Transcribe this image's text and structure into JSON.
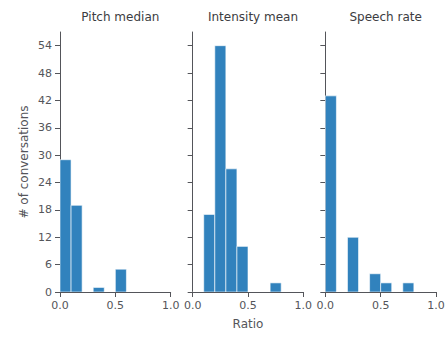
{
  "chart_data": [
    {
      "type": "histogram",
      "title": "Pitch median",
      "ylabel": "# of conversations",
      "bins": [
        0.0,
        0.1,
        0.2,
        0.3,
        0.4,
        0.5,
        0.6,
        0.7,
        0.8,
        0.9,
        1.0
      ],
      "values": [
        29,
        19,
        0,
        1,
        0,
        5,
        0,
        0,
        0,
        0
      ],
      "color": "#3182bd",
      "xlim": [
        0,
        1
      ],
      "ylim": [
        0,
        57
      ],
      "xticks": [
        {
          "value": 0,
          "label": "0.0"
        },
        0.5,
        {
          "value": 1,
          "label": "1.0"
        }
      ],
      "yticks": [
        0,
        6,
        12,
        18,
        24,
        30,
        36,
        42,
        48,
        54
      ],
      "grid": false
    },
    {
      "type": "histogram",
      "title": "Intensity mean",
      "xlabel": "Ratio",
      "bins": [
        0.0,
        0.1,
        0.2,
        0.3,
        0.4,
        0.5,
        0.6,
        0.7,
        0.8,
        0.9,
        1.0
      ],
      "values": [
        0,
        17,
        54,
        27,
        10,
        0,
        0,
        2,
        0,
        0
      ],
      "color": "#3182bd",
      "xlim": [
        0,
        1
      ],
      "ylim": [
        0,
        57
      ],
      "xticks": [
        {
          "value": 0,
          "label": "0.0"
        },
        0.5,
        {
          "value": 1,
          "label": "1.0"
        }
      ],
      "yticks": [
        0,
        6,
        12,
        18,
        24,
        30,
        36,
        42,
        48,
        54
      ],
      "grid": false,
      "tick_labels": "x"
    },
    {
      "type": "histogram",
      "title": "Speech rate",
      "bins": [
        0.0,
        0.1,
        0.2,
        0.3,
        0.4,
        0.5,
        0.6,
        0.7,
        0.8,
        0.9,
        1.0
      ],
      "values": [
        43,
        0,
        12,
        0,
        4,
        2,
        0,
        2,
        0,
        0
      ],
      "color": "#3182bd",
      "xlim": [
        0,
        1
      ],
      "ylim": [
        0,
        57
      ],
      "xticks": [
        {
          "value": 0,
          "label": "0.0"
        },
        0.5,
        {
          "value": 1,
          "label": "1.0"
        }
      ],
      "yticks": [
        0,
        6,
        12,
        18,
        24,
        30,
        36,
        42,
        48,
        54
      ],
      "grid": false,
      "tick_labels": "x"
    }
  ]
}
